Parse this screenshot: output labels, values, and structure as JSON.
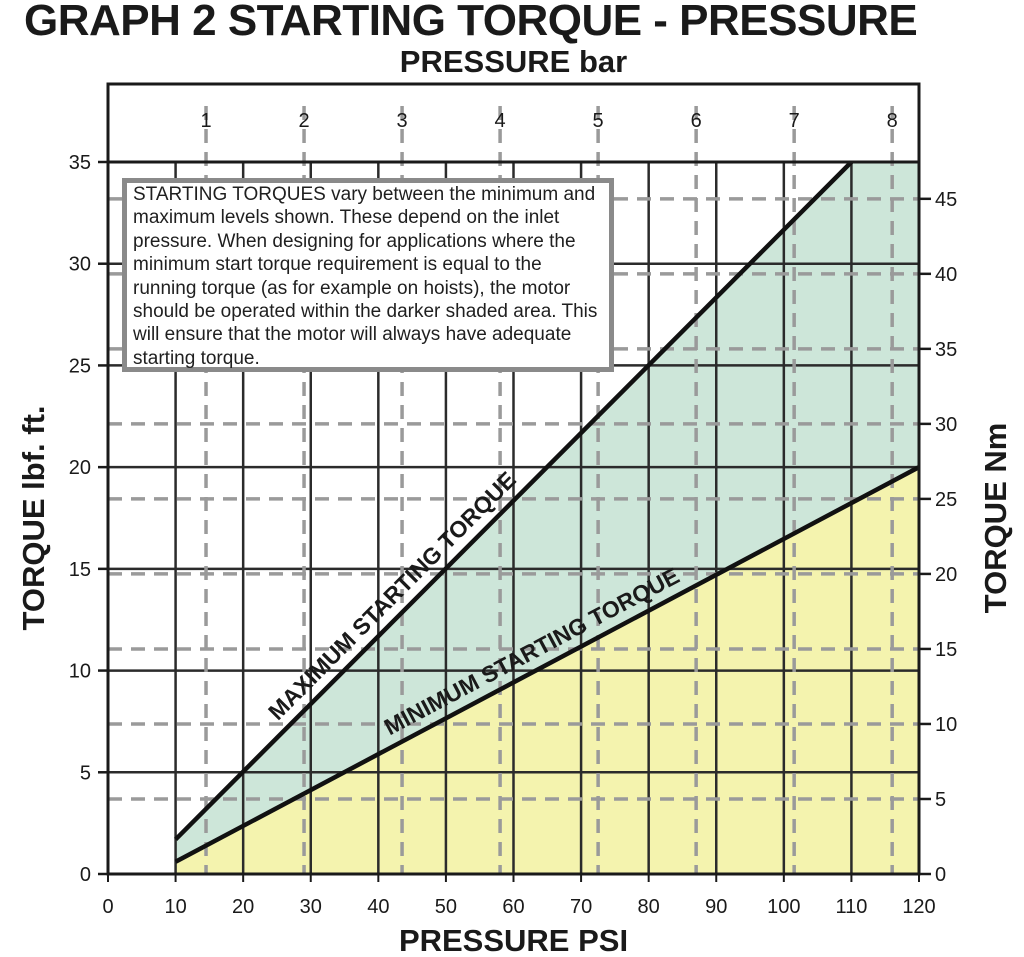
{
  "title": "GRAPH 2 STARTING TORQUE - PRESSURE",
  "note": "STARTING TORQUES vary between the minimum and maximum levels shown. These depend on the inlet pressure. When designing for applications where the minimum start torque requirement is equal to the running torque (as for example on hoists), the motor should be operated within the darker shaded area. This will ensure that the motor will always have adequate starting torque.",
  "colors": {
    "frame": "#1a1a1a",
    "grid": "#2b2b2b",
    "dashed_grid": "#9a9a9a",
    "max_region_fill": "#cde6d9",
    "min_region_fill": "#f4f3ae",
    "note_border": "#8a8a8a"
  },
  "chart_data": {
    "type": "line",
    "title": "GRAPH 2 STARTING TORQUE - PRESSURE",
    "xlabel": "PRESSURE PSI",
    "ylabel": "TORQUE lbf. ft.",
    "x2label": "PRESSURE bar",
    "y2label": "TORQUE Nm",
    "xlim": [
      0,
      120
    ],
    "ylim": [
      0,
      35
    ],
    "x_ticks": [
      0,
      10,
      20,
      30,
      40,
      50,
      60,
      70,
      80,
      90,
      100,
      110,
      120
    ],
    "y_ticks": [
      0,
      5,
      10,
      15,
      20,
      25,
      30,
      35
    ],
    "x2_ticks": [
      1,
      2,
      3,
      4,
      5,
      6,
      7,
      8
    ],
    "y2_ticks": [
      0,
      5,
      10,
      15,
      20,
      25,
      30,
      35,
      40,
      45
    ],
    "grid": true,
    "series": [
      {
        "name": "MAXIMUM STARTING TORQUE",
        "x": [
          10,
          110
        ],
        "y": [
          1.7,
          35
        ]
      },
      {
        "name": "MINIMUM STARTING TORQUE",
        "x": [
          10,
          120
        ],
        "y": [
          0.6,
          20
        ]
      }
    ]
  }
}
